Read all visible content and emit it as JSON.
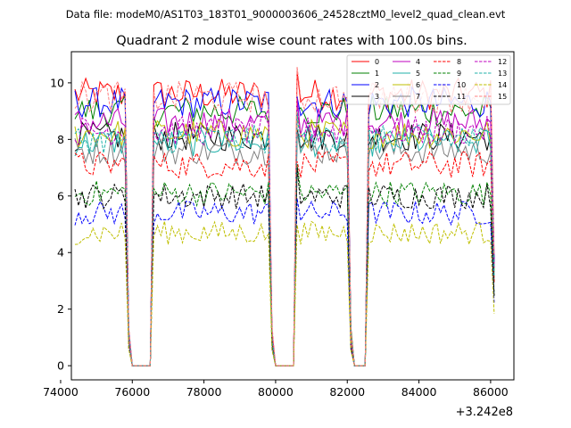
{
  "header": {
    "data_file": "Data file: modeM0/AS1T03_183T01_9000003606_24528cztM0_level2_quad_clean.evt"
  },
  "chart_data": {
    "type": "line",
    "title": "Quadrant 2 module wise count rates with 100.0s bins.",
    "xlabel": "",
    "ylabel": "",
    "x_offset_label": "+3.242e8",
    "xlim": [
      74300,
      86650
    ],
    "ylim": [
      -0.5,
      11.1
    ],
    "x_ticks": [
      74000,
      76000,
      78000,
      80000,
      82000,
      84000,
      86000
    ],
    "x_tick_labels": [
      "74000",
      "76000",
      "78000",
      "80000",
      "82000",
      "84000",
      "86000"
    ],
    "y_ticks": [
      0,
      2,
      4,
      6,
      8,
      10
    ],
    "y_tick_labels": [
      "0",
      "2",
      "4",
      "6",
      "8",
      "10"
    ],
    "grid": false,
    "legend_position": "top-right",
    "bin_seconds": 100,
    "segments": [
      {
        "start": 74400,
        "end": 75900
      },
      {
        "start": 76600,
        "end": 79900
      },
      {
        "start": 80600,
        "end": 82100
      },
      {
        "start": 82600,
        "end": 86000
      }
    ],
    "gaps": [
      {
        "start": 76000,
        "end": 76500
      },
      {
        "start": 80000,
        "end": 80500
      },
      {
        "start": 82200,
        "end": 82500
      }
    ],
    "series": [
      {
        "name": "0",
        "color": "#ff0000",
        "style": "solid",
        "level": 9.6
      },
      {
        "name": "1",
        "color": "#008000",
        "style": "solid",
        "level": 9.0
      },
      {
        "name": "2",
        "color": "#0000ff",
        "style": "solid",
        "level": 9.3
      },
      {
        "name": "3",
        "color": "#000000",
        "style": "solid",
        "level": 8.1
      },
      {
        "name": "4",
        "color": "#bf00bf",
        "style": "solid",
        "level": 8.6
      },
      {
        "name": "5",
        "color": "#20b2aa",
        "style": "solid",
        "level": 7.9
      },
      {
        "name": "6",
        "color": "#bfbf00",
        "style": "solid",
        "level": 8.2
      },
      {
        "name": "7",
        "color": "#808080",
        "style": "solid",
        "level": 7.6
      },
      {
        "name": "8",
        "color": "#ff0000",
        "style": "dashed",
        "level": 7.1
      },
      {
        "name": "9",
        "color": "#008000",
        "style": "dashed",
        "level": 6.1
      },
      {
        "name": "10",
        "color": "#0000ff",
        "style": "dashed",
        "level": 5.4
      },
      {
        "name": "11",
        "color": "#000000",
        "style": "dashed",
        "level": 6.0
      },
      {
        "name": "12",
        "color": "#bf00bf",
        "style": "dashed",
        "level": 8.3
      },
      {
        "name": "13",
        "color": "#20b2aa",
        "style": "dashed",
        "level": 8.0
      },
      {
        "name": "14",
        "color": "#bfbf00",
        "style": "dashed",
        "level": 4.7
      },
      {
        "name": "15",
        "color": "#ff7f7f",
        "style": "dashed",
        "level": 9.5
      }
    ]
  }
}
